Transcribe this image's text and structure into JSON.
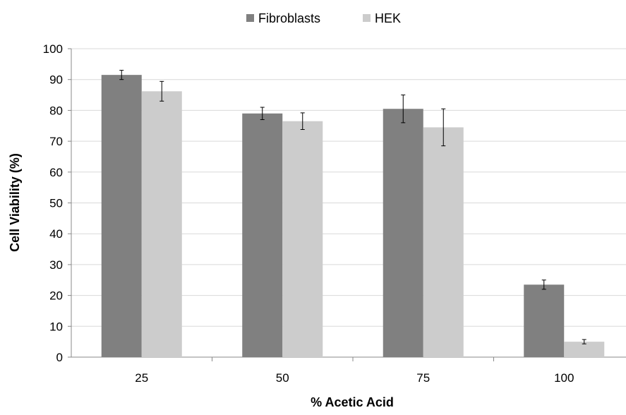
{
  "chart_data": {
    "type": "bar",
    "title": "",
    "xlabel": "% Acetic Acid",
    "ylabel": "Cell  Viability (%)",
    "categories": [
      "25",
      "50",
      "75",
      "100"
    ],
    "series": [
      {
        "name": "Fibroblasts",
        "color": "#808080",
        "values": [
          91.5,
          79,
          80.5,
          23.5
        ],
        "errors": [
          1.5,
          2,
          4.5,
          1.5
        ]
      },
      {
        "name": "HEK",
        "color": "#cccccc",
        "values": [
          86.2,
          76.5,
          74.5,
          5
        ],
        "errors": [
          3.2,
          2.7,
          6,
          0.7
        ]
      }
    ],
    "ylim": [
      0,
      100
    ],
    "yticks": [
      0,
      10,
      20,
      30,
      40,
      50,
      60,
      70,
      80,
      90,
      100
    ],
    "grid": true,
    "legend_position": "top-center"
  }
}
